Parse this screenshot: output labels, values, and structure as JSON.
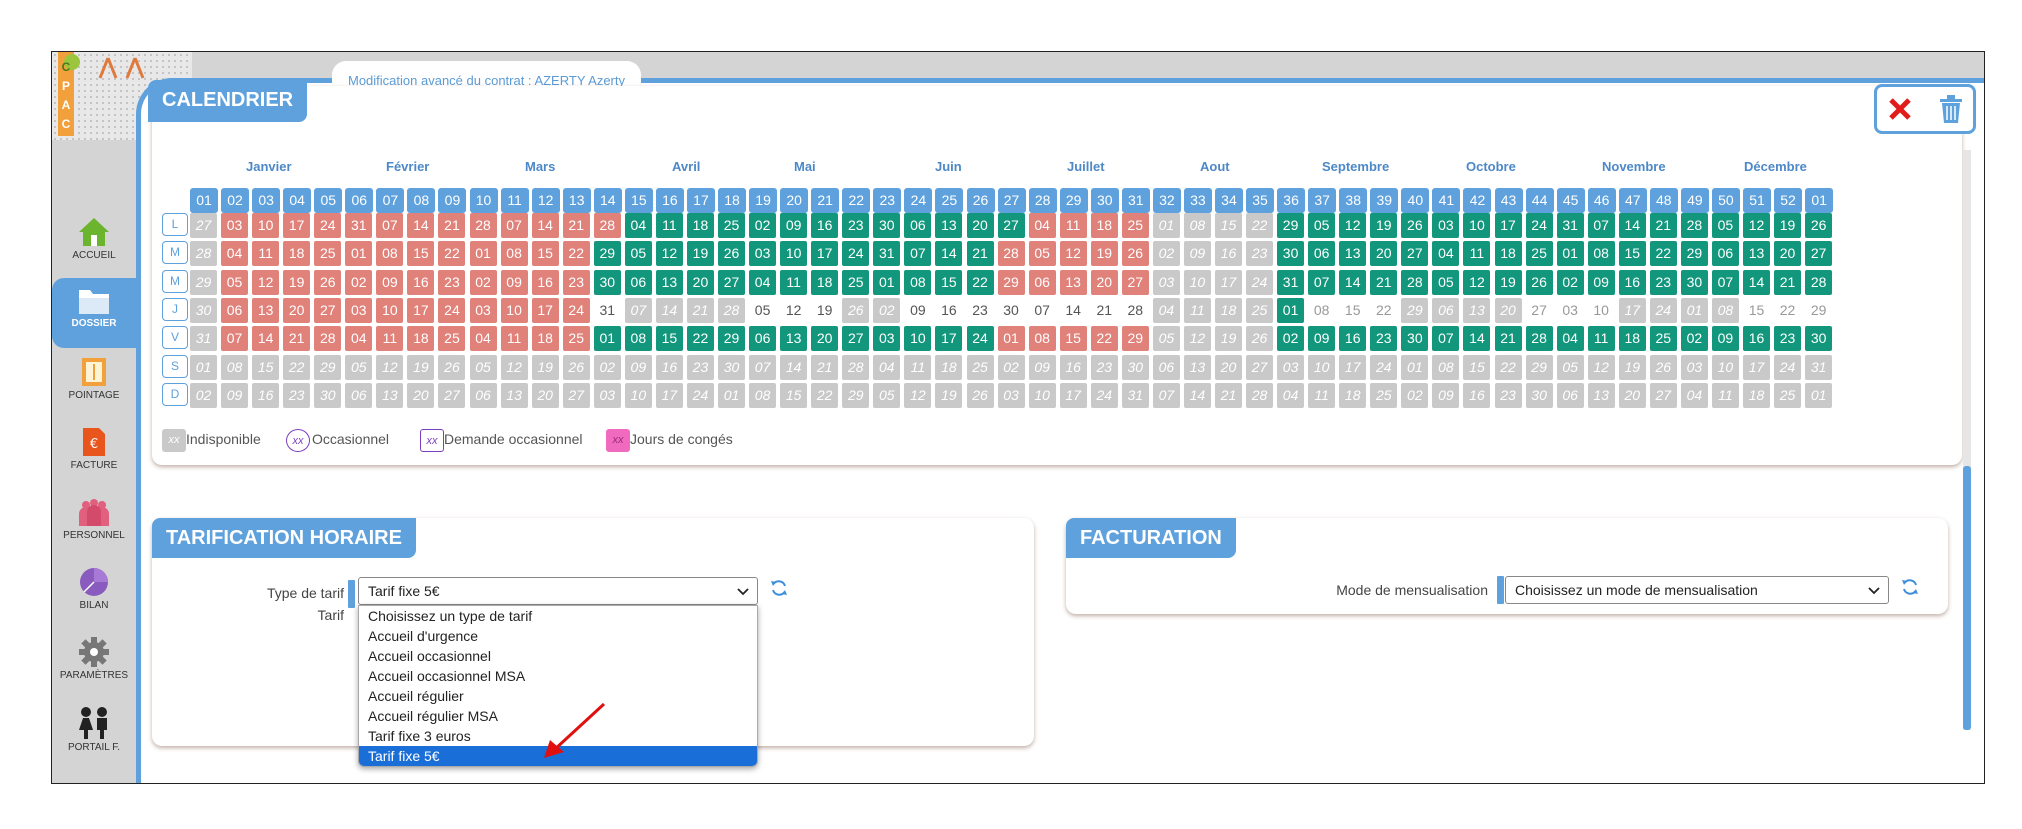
{
  "app": {
    "logo_letters": [
      "C",
      "A",
      "P",
      "C"
    ],
    "contract_tab": "Modification avancé du contrat : AZERTY Azerty",
    "colors": {
      "accent": "#5ea1dc",
      "work": "#12977c",
      "conge": "#e0817a",
      "indisponible": "#c9c9c9",
      "occasionnel": "#7b3fbf",
      "jours_conges": "#f06ac0",
      "close": "#e21b1b"
    }
  },
  "sidebar": {
    "items": [
      {
        "label": "ACCUEIL",
        "icon": "home-icon"
      },
      {
        "label": "DOSSIER",
        "icon": "folder-icon",
        "active": true
      },
      {
        "label": "POINTAGE",
        "icon": "pointage-icon"
      },
      {
        "label": "FACTURE",
        "icon": "invoice-icon"
      },
      {
        "label": "PERSONNEL",
        "icon": "people-icon"
      },
      {
        "label": "BILAN",
        "icon": "pie-chart-icon"
      },
      {
        "label": "PARAMÈTRES",
        "icon": "gear-icon"
      },
      {
        "label": "PORTAIL F.",
        "icon": "family-icon"
      }
    ]
  },
  "calendar": {
    "title": "CALENDRIER",
    "months": [
      "Janvier",
      "Février",
      "Mars",
      "Avril",
      "Mai",
      "Juin",
      "Juillet",
      "Aout",
      "Septembre",
      "Octobre",
      "Novembre",
      "Décembre"
    ],
    "weeks": [
      "01",
      "02",
      "03",
      "04",
      "05",
      "06",
      "07",
      "08",
      "09",
      "10",
      "11",
      "12",
      "13",
      "14",
      "15",
      "16",
      "17",
      "18",
      "19",
      "20",
      "21",
      "22",
      "23",
      "24",
      "25",
      "26",
      "27",
      "28",
      "29",
      "30",
      "31",
      "32",
      "33",
      "34",
      "35",
      "36",
      "37",
      "38",
      "39",
      "40",
      "41",
      "42",
      "43",
      "44",
      "45",
      "46",
      "47",
      "48",
      "49",
      "50",
      "51",
      "52",
      "01"
    ],
    "day_labels": [
      "L",
      "M",
      "M",
      "J",
      "V",
      "S",
      "D"
    ],
    "legend": [
      {
        "label": "Indisponible",
        "marker": "xx"
      },
      {
        "label": "Occasionnel",
        "marker": "xx"
      },
      {
        "label": "Demande occasionnel",
        "marker": "xx"
      },
      {
        "label": "Jours de congés",
        "marker": "xx"
      }
    ]
  },
  "tarification": {
    "title": "TARIFICATION HORAIRE",
    "type_label": "Type de tarif",
    "type_value": "Tarif fixe 5€",
    "tarif_label": "Tarif",
    "options": [
      "Choisissez un type de tarif",
      "Accueil d'urgence",
      "Accueil occasionnel",
      "Accueil occasionnel MSA",
      "Accueil régulier",
      "Accueil régulier MSA",
      "Tarif fixe 3 euros",
      "Tarif fixe 5€"
    ],
    "selected_option": "Tarif fixe 5€"
  },
  "facturation": {
    "title": "FACTURATION",
    "mode_label": "Mode de mensualisation",
    "mode_value": "Choisissez un mode de mensualisation"
  }
}
